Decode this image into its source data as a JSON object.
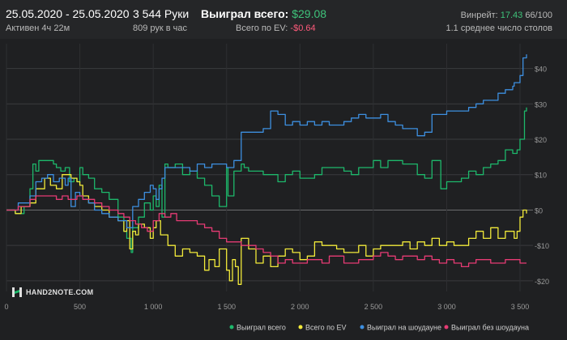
{
  "header": {
    "date_range": "25.05.2020 - 25.05.2020",
    "active": "Активен 4ч 22м",
    "hands": "3 544 Руки",
    "hands_per_hour": "809 рук в час",
    "won_total_label": "Выиграл всего:",
    "won_total_value": "$29.08",
    "ev_label": "Всего по EV:",
    "ev_value": "-$0.64",
    "winrate_label": "Винрейт:",
    "winrate_value": "17.43",
    "winrate_rest": "66/100",
    "avg_tables": "1.1 среднее число столов"
  },
  "logo": {
    "text": "HAND2NOTE.COM"
  },
  "colors": {
    "won": "#1db86b",
    "ev": "#f2ea3a",
    "showdown": "#3d8fe0",
    "nonshowdown": "#e63b74"
  },
  "chart_data": {
    "type": "line",
    "xlim": [
      0,
      3544
    ],
    "ylim": [
      -23,
      47
    ],
    "x_ticks": [
      0,
      500,
      1000,
      1500,
      2000,
      2500,
      3000,
      3500
    ],
    "x_tick_labels": [
      "0",
      "500",
      "1 000",
      "1 500",
      "2 000",
      "2 500",
      "3 000",
      "3 500"
    ],
    "y_ticks": [
      40,
      30,
      20,
      10,
      0,
      -10,
      -20
    ],
    "y_tick_labels": [
      "$40",
      "$30",
      "$20",
      "$10",
      "$0",
      "-$10",
      "-$20"
    ],
    "grid": true,
    "legend_position": "bottom-right",
    "series": [
      {
        "name": "Выиграл всего",
        "color_key": "won",
        "x": [
          0,
          60,
          120,
          160,
          180,
          200,
          220,
          260,
          300,
          320,
          340,
          370,
          400,
          430,
          460,
          480,
          500,
          520,
          560,
          600,
          650,
          700,
          760,
          800,
          820,
          850,
          860,
          900,
          940,
          980,
          1000,
          1020,
          1040,
          1060,
          1080,
          1100,
          1150,
          1200,
          1250,
          1300,
          1350,
          1400,
          1450,
          1500,
          1510,
          1550,
          1600,
          1620,
          1650,
          1700,
          1750,
          1800,
          1850,
          1900,
          1950,
          2000,
          2050,
          2100,
          2150,
          2200,
          2250,
          2300,
          2350,
          2400,
          2450,
          2500,
          2550,
          2600,
          2650,
          2700,
          2750,
          2800,
          2850,
          2900,
          2950,
          2960,
          3000,
          3050,
          3100,
          3150,
          3200,
          3250,
          3300,
          3350,
          3400,
          3450,
          3480,
          3500,
          3530,
          3544
        ],
        "y": [
          0,
          -1,
          1,
          6,
          13,
          11,
          14,
          14,
          14,
          13,
          12,
          11,
          12,
          8,
          9,
          8,
          12,
          10,
          9,
          6,
          5,
          3,
          -2,
          -6,
          -8,
          -12,
          -5,
          -2,
          2,
          0,
          4,
          1,
          7,
          -2,
          13,
          12,
          13,
          10,
          11,
          9,
          7,
          4,
          1,
          12,
          4,
          11,
          13,
          12,
          11,
          11,
          10,
          10,
          8,
          10,
          11,
          9,
          9,
          10,
          12,
          12,
          12,
          11,
          10,
          12,
          12,
          14,
          12,
          14,
          14,
          13,
          13,
          10,
          9,
          14,
          14,
          6,
          8,
          8,
          9,
          11,
          10,
          12,
          13,
          14,
          17,
          16,
          17,
          20,
          28,
          29
        ]
      },
      {
        "name": "Всего по EV",
        "color_key": "ev",
        "x": [
          0,
          60,
          100,
          160,
          200,
          260,
          300,
          340,
          380,
          440,
          480,
          500,
          520,
          560,
          600,
          650,
          700,
          760,
          800,
          820,
          840,
          860,
          880,
          900,
          940,
          980,
          1000,
          1020,
          1050,
          1100,
          1150,
          1200,
          1250,
          1300,
          1350,
          1380,
          1420,
          1450,
          1500,
          1520,
          1540,
          1560,
          1580,
          1600,
          1650,
          1700,
          1750,
          1800,
          1850,
          1900,
          1950,
          2000,
          2050,
          2100,
          2150,
          2200,
          2250,
          2300,
          2350,
          2400,
          2450,
          2500,
          2550,
          2600,
          2650,
          2700,
          2750,
          2800,
          2850,
          2900,
          2950,
          3000,
          3050,
          3100,
          3150,
          3200,
          3250,
          3300,
          3350,
          3400,
          3430,
          3460,
          3480,
          3500,
          3520,
          3544
        ],
        "y": [
          0,
          -1,
          1,
          2,
          6,
          9,
          7,
          6,
          10,
          9,
          8,
          7,
          4,
          2,
          1,
          0,
          -2,
          -3,
          -6,
          -3,
          -11,
          -6,
          -7,
          -4,
          -5,
          -8,
          -5,
          -3,
          -7,
          -10,
          -13,
          -11,
          -12,
          -13,
          -17,
          -14,
          -16,
          -11,
          -17,
          -20,
          -14,
          -16,
          -21,
          -8,
          -11,
          -15,
          -13,
          -16,
          -13,
          -11,
          -12,
          -14,
          -13,
          -9,
          -10,
          -10,
          -11,
          -12,
          -12,
          -10,
          -13,
          -11,
          -10,
          -10,
          -10,
          -9,
          -11,
          -9,
          -10,
          -8,
          -10,
          -9,
          -10,
          -10,
          -8,
          -6,
          -8,
          -5,
          -8,
          -6,
          -6,
          -8,
          -6,
          -2,
          0,
          -1
        ]
      },
      {
        "name": "Выиграл на шоудауне",
        "color_key": "showdown",
        "x": [
          0,
          80,
          160,
          200,
          240,
          280,
          320,
          360,
          400,
          420,
          440,
          470,
          500,
          520,
          560,
          600,
          650,
          700,
          760,
          800,
          820,
          860,
          900,
          940,
          980,
          1000,
          1020,
          1040,
          1060,
          1080,
          1100,
          1150,
          1200,
          1250,
          1300,
          1350,
          1400,
          1450,
          1500,
          1550,
          1600,
          1650,
          1700,
          1750,
          1800,
          1850,
          1900,
          1950,
          2000,
          2050,
          2100,
          2150,
          2200,
          2250,
          2300,
          2350,
          2400,
          2450,
          2500,
          2550,
          2600,
          2650,
          2700,
          2750,
          2800,
          2850,
          2900,
          2950,
          3000,
          3050,
          3100,
          3150,
          3200,
          3250,
          3300,
          3350,
          3400,
          3450,
          3460,
          3480,
          3500,
          3520,
          3540,
          3544
        ],
        "y": [
          0,
          2,
          4,
          8,
          9,
          10,
          8,
          9,
          7,
          9,
          1,
          5,
          4,
          3,
          2,
          0,
          -1,
          -2,
          -3,
          -3,
          -5,
          1,
          3,
          5,
          7,
          6,
          3,
          6,
          9,
          12,
          12,
          12,
          12,
          11,
          13,
          12,
          13,
          13,
          12,
          14,
          22,
          22,
          22,
          23,
          28,
          27,
          24,
          25,
          24,
          25,
          24,
          25,
          24,
          24,
          25,
          26,
          27,
          26,
          26,
          27,
          25,
          24,
          23,
          23,
          21,
          22,
          27,
          27,
          28,
          28,
          28,
          29,
          30,
          31,
          31,
          33,
          34,
          35,
          36,
          36,
          38,
          43,
          43,
          44
        ]
      },
      {
        "name": "Выиграл без шоудауна",
        "color_key": "nonshowdown",
        "x": [
          0,
          80,
          160,
          200,
          260,
          300,
          340,
          380,
          420,
          480,
          520,
          560,
          600,
          650,
          700,
          760,
          800,
          840,
          880,
          920,
          960,
          1000,
          1040,
          1080,
          1120,
          1160,
          1200,
          1250,
          1300,
          1350,
          1400,
          1450,
          1500,
          1550,
          1600,
          1650,
          1700,
          1750,
          1800,
          1850,
          1900,
          1950,
          2000,
          2050,
          2100,
          2150,
          2200,
          2250,
          2300,
          2350,
          2400,
          2450,
          2500,
          2550,
          2600,
          2650,
          2700,
          2750,
          2800,
          2850,
          2900,
          2950,
          3000,
          3050,
          3100,
          3150,
          3200,
          3250,
          3300,
          3350,
          3400,
          3450,
          3500,
          3544
        ],
        "y": [
          0,
          1,
          3,
          4,
          4,
          4,
          3,
          4,
          3,
          4,
          3,
          3,
          2,
          1,
          0,
          -1,
          -2,
          -3,
          -4,
          -5,
          -6,
          -3,
          -1,
          -2,
          -1,
          -3,
          -3,
          -3,
          -4,
          -5,
          -6,
          -8,
          -9,
          -9,
          -10,
          -10,
          -11,
          -12,
          -13,
          -15,
          -14,
          -15,
          -15,
          -14,
          -14,
          -15,
          -13,
          -13,
          -15,
          -15,
          -14,
          -14,
          -13,
          -12,
          -13,
          -14,
          -13,
          -13,
          -14,
          -13,
          -14,
          -15,
          -14,
          -15,
          -16,
          -15,
          -14,
          -14,
          -15,
          -15,
          -14,
          -14,
          -15,
          -15
        ]
      }
    ],
    "legend": [
      {
        "label": "Выиграл всего",
        "color_key": "won"
      },
      {
        "label": "Всего по EV",
        "color_key": "ev"
      },
      {
        "label": "Выиграл на шоудауне",
        "color_key": "showdown"
      },
      {
        "label": "Выиграл без шоудауна",
        "color_key": "nonshowdown"
      }
    ]
  }
}
